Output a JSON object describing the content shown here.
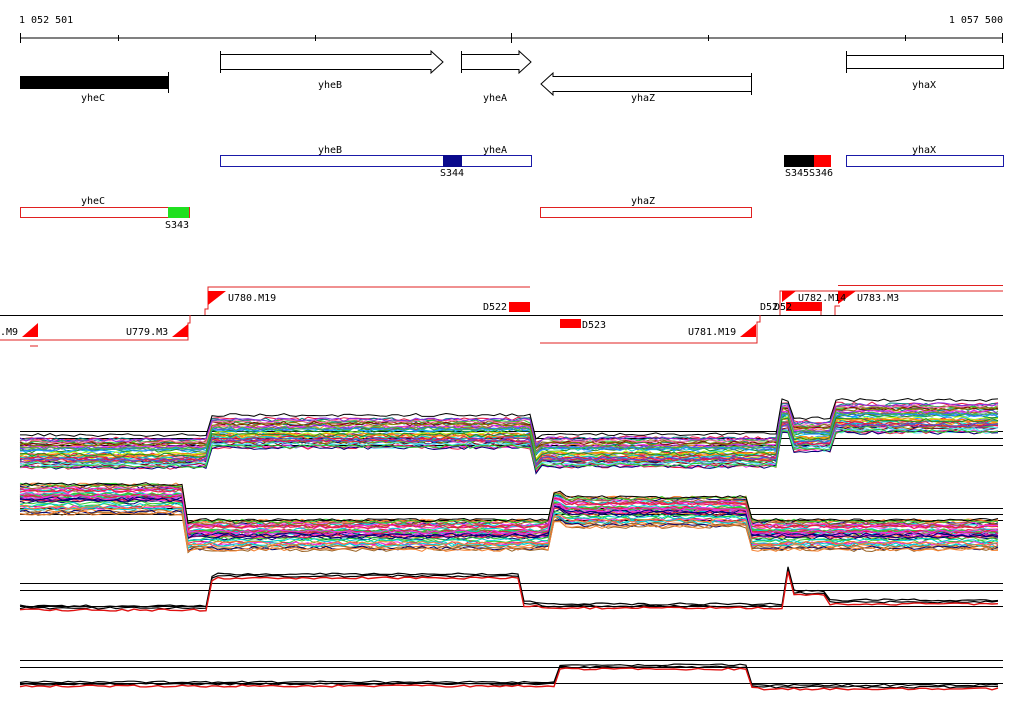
{
  "ruler": {
    "start_label": "1 052 501",
    "end_label": "1 057 500"
  },
  "annotated_genes": [
    {
      "name": "yheC",
      "strand": "left",
      "style": "filled"
    },
    {
      "name": "yheB",
      "strand": "right",
      "style": "outline"
    },
    {
      "name": "yheA",
      "strand": "right",
      "style": "outline"
    },
    {
      "name": "yhaZ",
      "strand": "left",
      "style": "outline"
    },
    {
      "name": "yhaX",
      "strand": "right",
      "style": "outline"
    }
  ],
  "forward_transcripts": [
    {
      "genes": [
        "yheB",
        "yheA"
      ],
      "segments": [
        "S344"
      ]
    },
    {
      "genes": [
        "yhaX"
      ],
      "segments": [
        "S345",
        "S346"
      ]
    }
  ],
  "reverse_transcripts": [
    {
      "genes": [
        "yheC"
      ],
      "segments": [
        "S343"
      ]
    },
    {
      "genes": [
        "yhaZ"
      ],
      "segments": []
    }
  ],
  "upshift_labels": [
    "U779.M3",
    "U780.M19",
    "U781.M19",
    "U782.M14",
    "U783.M3",
    ".M9"
  ],
  "downshift_labels": [
    "D522",
    "D523",
    "D52",
    "D52"
  ],
  "colors": {
    "annotation": "#000000",
    "forward_transcript": "#1a1aa8",
    "reverse_transcript": "#e02020",
    "segment_green": "#20e020",
    "segment_navy": "#0a0a8c",
    "segment_red": "#ff0000",
    "profile_red": "#e01010"
  }
}
